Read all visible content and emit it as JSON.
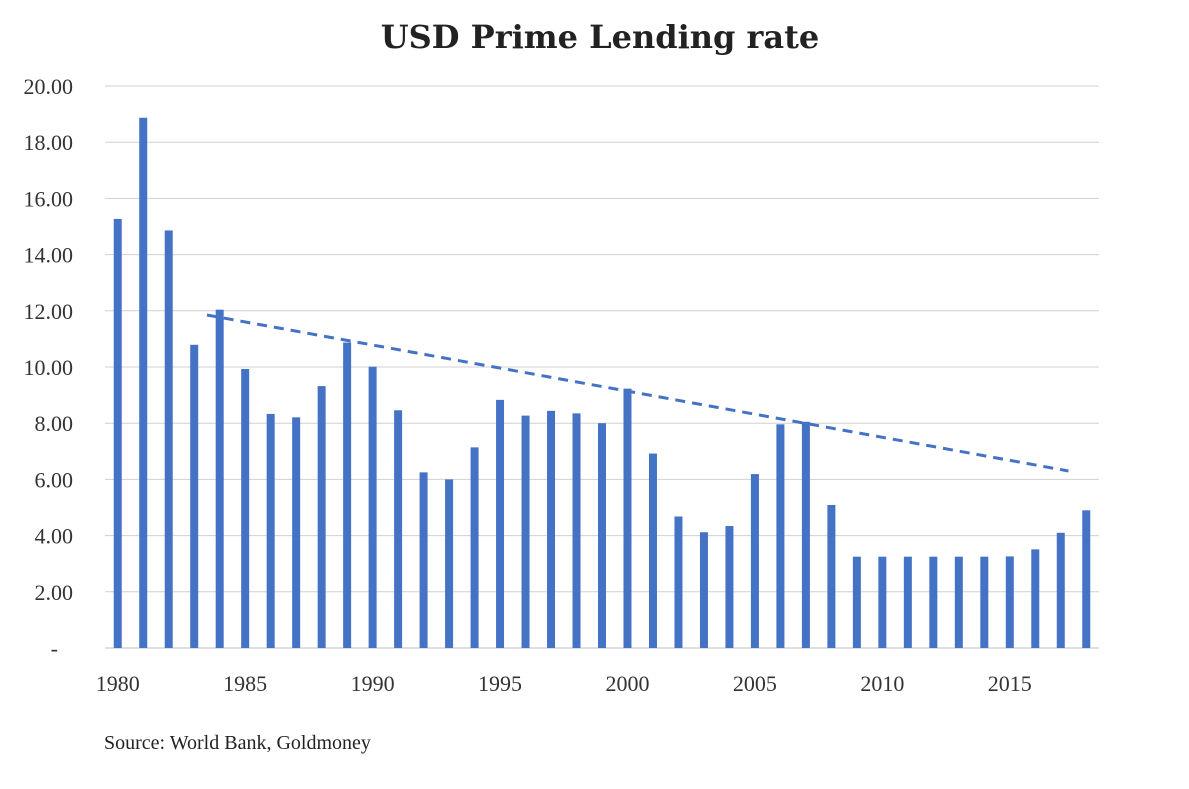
{
  "chart_data": {
    "type": "bar",
    "title": "USD Prime Lending rate",
    "source": "Source: World Bank, Goldmoney",
    "xlabel": "",
    "ylabel": "",
    "ylim": [
      0,
      20
    ],
    "y_ticks": [
      "-",
      "2.00",
      "4.00",
      "6.00",
      "8.00",
      "10.00",
      "12.00",
      "14.00",
      "16.00",
      "18.00",
      "20.00"
    ],
    "x_tick_labels": [
      "1980",
      "1985",
      "1990",
      "1995",
      "2000",
      "2005",
      "2010",
      "2015"
    ],
    "grid": true,
    "legend": "none",
    "bar_color": "#4472c4",
    "categories": [
      1980,
      1981,
      1982,
      1983,
      1984,
      1985,
      1986,
      1987,
      1988,
      1989,
      1990,
      1991,
      1992,
      1993,
      1994,
      1995,
      1996,
      1997,
      1998,
      1999,
      2000,
      2001,
      2002,
      2003,
      2004,
      2005,
      2006,
      2007,
      2008,
      2009,
      2010,
      2011,
      2012,
      2013,
      2014,
      2015,
      2016,
      2017,
      2018
    ],
    "values": [
      15.27,
      18.87,
      14.86,
      10.79,
      12.04,
      9.93,
      8.33,
      8.21,
      9.32,
      10.87,
      10.01,
      8.46,
      6.25,
      6.0,
      7.14,
      8.83,
      8.27,
      8.44,
      8.35,
      8.0,
      9.23,
      6.92,
      4.68,
      4.12,
      4.34,
      6.19,
      7.96,
      8.05,
      5.09,
      3.25,
      3.25,
      3.25,
      3.25,
      3.25,
      3.25,
      3.26,
      3.51,
      4.1,
      4.9
    ],
    "trendline": {
      "style": "dashed",
      "color": "#4472c4",
      "x": [
        1983.5,
        2017.3
      ],
      "y": [
        11.85,
        6.3
      ]
    }
  }
}
